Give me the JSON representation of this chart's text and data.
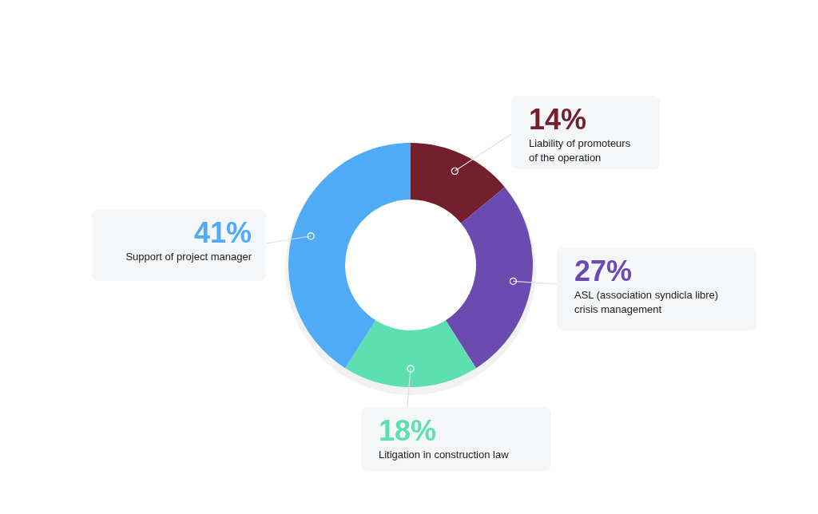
{
  "chart_data": {
    "type": "donut",
    "categories": [
      "Liability of promoteurs of the operation",
      "ASL (association syndicla libre) crisis management",
      "Litigation in construction law",
      "Support of project manager"
    ],
    "values": [
      14,
      27,
      18,
      41
    ],
    "value_labels": [
      "14%",
      "27%",
      "18%",
      "41%"
    ],
    "colors": [
      "#741f2e",
      "#6c4bb0",
      "#5ddfb2",
      "#4fabf5"
    ]
  }
}
